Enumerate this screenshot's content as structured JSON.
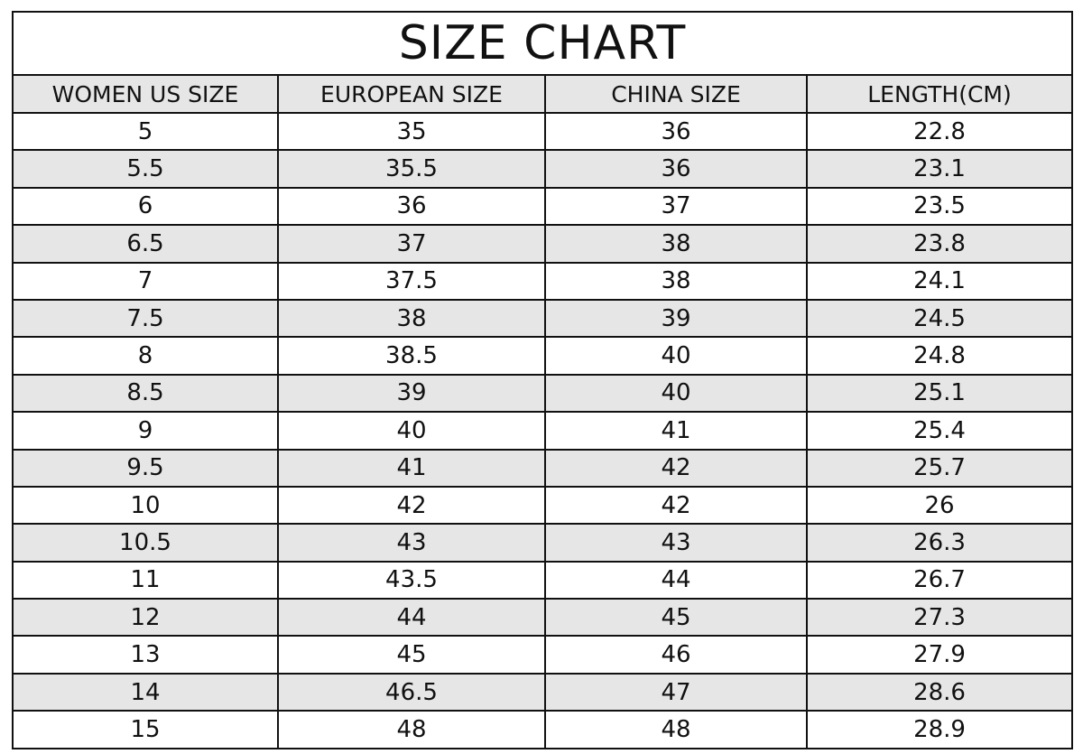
{
  "title": "SIZE CHART",
  "accent_color": "#f07a2a",
  "headers": [
    "WOMEN US SIZE",
    "EUROPEAN SIZE",
    "CHINA SIZE",
    "LENGTH(CM)"
  ],
  "rows": [
    [
      "5",
      "35",
      "36",
      "22.8"
    ],
    [
      "5.5",
      "35.5",
      "36",
      "23.1"
    ],
    [
      "6",
      "36",
      "37",
      "23.5"
    ],
    [
      "6.5",
      "37",
      "38",
      "23.8"
    ],
    [
      "7",
      "37.5",
      "38",
      "24.1"
    ],
    [
      "7.5",
      "38",
      "39",
      "24.5"
    ],
    [
      "8",
      "38.5",
      "40",
      "24.8"
    ],
    [
      "8.5",
      "39",
      "40",
      "25.1"
    ],
    [
      "9",
      "40",
      "41",
      "25.4"
    ],
    [
      "9.5",
      "41",
      "42",
      "25.7"
    ],
    [
      "10",
      "42",
      "42",
      "26"
    ],
    [
      "10.5",
      "43",
      "43",
      "26.3"
    ],
    [
      "11",
      "43.5",
      "44",
      "26.7"
    ],
    [
      "12",
      "44",
      "45",
      "27.3"
    ],
    [
      "13",
      "45",
      "46",
      "27.9"
    ],
    [
      "14",
      "46.5",
      "47",
      "28.6"
    ],
    [
      "15",
      "48",
      "48",
      "28.9"
    ]
  ]
}
